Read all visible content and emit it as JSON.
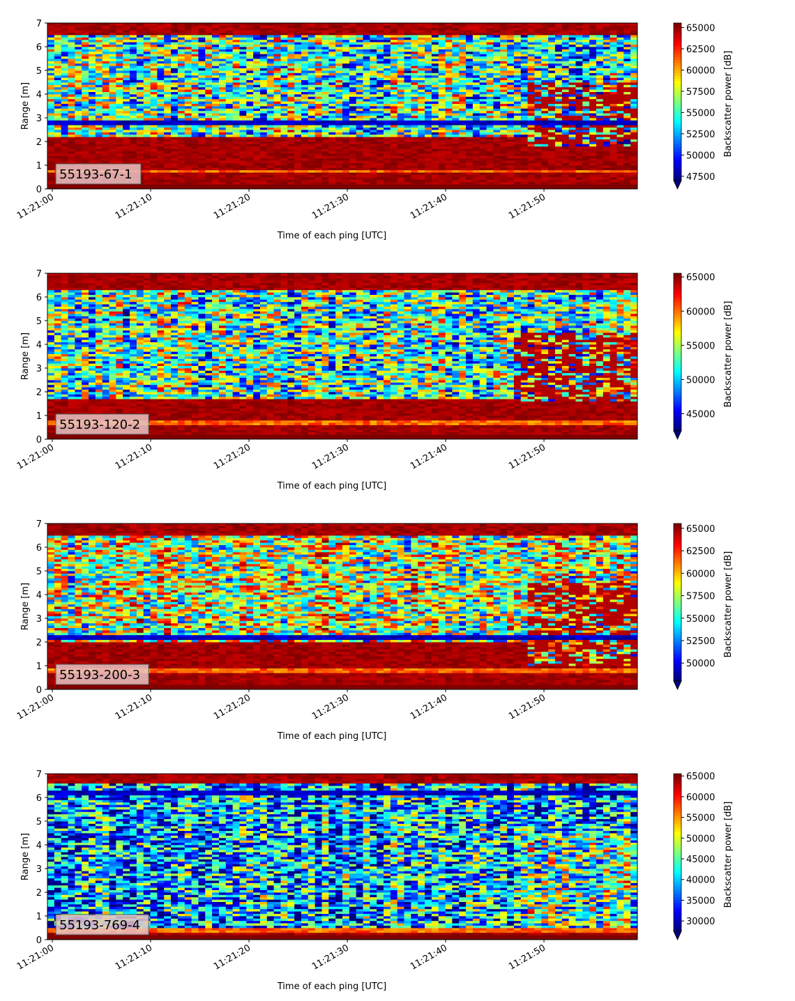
{
  "colormap": "jet",
  "colors": {
    "min_end": "#00007f",
    "max_end": "#7f0000",
    "label_box_fill": "#e8c4c4",
    "label_box_stroke": "#555555"
  },
  "chart_data": [
    {
      "type": "heatmap",
      "panel_label": "55193-67-1",
      "xlabel": "Time of each ping [UTC]",
      "ylabel": "Range [m]",
      "colorbar_label": "Backscatter power [dB]",
      "x_ticks": [
        "11:21:00",
        "11:21:10",
        "11:21:20",
        "11:21:30",
        "11:21:40",
        "11:21:50"
      ],
      "x_range_seconds": [
        0,
        59.5
      ],
      "y_ticks": [
        "0",
        "1",
        "2",
        "3",
        "4",
        "5",
        "6",
        "7"
      ],
      "ylim": [
        0,
        7
      ],
      "colorbar_ticks": [
        "47500",
        "50000",
        "52500",
        "55000",
        "57500",
        "60000",
        "62500",
        "65000"
      ],
      "clim": [
        47000,
        65535
      ],
      "colorbar_extend": "min",
      "structure": {
        "near_band_top": 2.2,
        "near_band_top_late": 1.8,
        "surface_line": 0.75,
        "top_band_bottom": 6.5,
        "thin_blue_line": 2.8,
        "late_high_region_start": 48,
        "noise_mean": 0.45
      }
    },
    {
      "type": "heatmap",
      "panel_label": "55193-120-2",
      "xlabel": "Time of each ping [UTC]",
      "ylabel": "Range [m]",
      "colorbar_label": "Backscatter power [dB]",
      "x_ticks": [
        "11:21:00",
        "11:21:10",
        "11:21:20",
        "11:21:30",
        "11:21:40",
        "11:21:50"
      ],
      "x_range_seconds": [
        0,
        59.5
      ],
      "y_ticks": [
        "0",
        "1",
        "2",
        "3",
        "4",
        "5",
        "6",
        "7"
      ],
      "ylim": [
        0,
        7
      ],
      "colorbar_ticks": [
        "45000",
        "50000",
        "55000",
        "60000",
        "65000"
      ],
      "clim": [
        42500,
        65535
      ],
      "colorbar_extend": "min",
      "structure": {
        "near_band_top": 1.7,
        "near_band_top_late": 1.6,
        "surface_line": 0.7,
        "top_band_bottom": 6.3,
        "thin_blue_line": 6.35,
        "late_high_region_start": 47,
        "noise_mean": 0.45
      }
    },
    {
      "type": "heatmap",
      "panel_label": "55193-200-3",
      "xlabel": "Time of each ping [UTC]",
      "ylabel": "Range [m]",
      "colorbar_label": "Backscatter power [dB]",
      "x_ticks": [
        "11:21:00",
        "11:21:10",
        "11:21:20",
        "11:21:30",
        "11:21:40",
        "11:21:50"
      ],
      "x_range_seconds": [
        0,
        59.5
      ],
      "y_ticks": [
        "0",
        "1",
        "2",
        "3",
        "4",
        "5",
        "6",
        "7"
      ],
      "ylim": [
        0,
        7
      ],
      "colorbar_ticks": [
        "50000",
        "52500",
        "55000",
        "57500",
        "60000",
        "62500",
        "65000"
      ],
      "clim": [
        48000,
        65535
      ],
      "colorbar_extend": "min",
      "structure": {
        "near_band_top": 2.0,
        "near_band_top_late": 1.0,
        "surface_line": 0.8,
        "top_band_bottom": 6.5,
        "thin_blue_line": 2.2,
        "late_high_region_start": 48,
        "noise_mean": 0.55
      }
    },
    {
      "type": "heatmap",
      "panel_label": "55193-769-4",
      "xlabel": "Time of each ping [UTC]",
      "ylabel": "Range [m]",
      "colorbar_label": "Backscatter power [dB]",
      "x_ticks": [
        "11:21:00",
        "11:21:10",
        "11:21:20",
        "11:21:30",
        "11:21:40",
        "11:21:50"
      ],
      "x_range_seconds": [
        0,
        59.5
      ],
      "y_ticks": [
        "0",
        "1",
        "2",
        "3",
        "4",
        "5",
        "6",
        "7"
      ],
      "ylim": [
        0,
        7
      ],
      "colorbar_ticks": [
        "30000",
        "35000",
        "40000",
        "45000",
        "50000",
        "55000",
        "60000",
        "65000"
      ],
      "clim": [
        27500,
        65535
      ],
      "colorbar_extend": "min",
      "structure": {
        "near_band_top": 0.55,
        "near_band_top_late": 0.55,
        "surface_line": 0.4,
        "top_band_bottom": 6.6,
        "thin_blue_line": 6.2,
        "late_high_region_start": 48,
        "noise_mean": 0.3
      }
    }
  ]
}
